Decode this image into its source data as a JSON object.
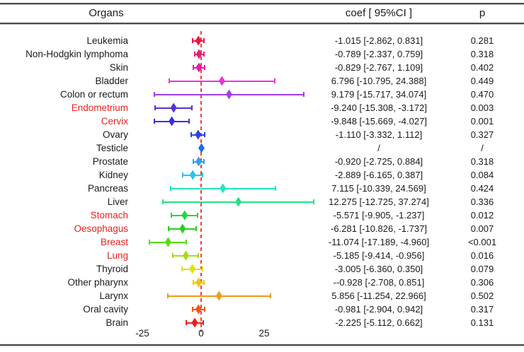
{
  "header": {
    "organs": "Organs",
    "coef": "coef [ 95%CI ]",
    "p": "p"
  },
  "axis": {
    "ticks": [
      "-25",
      "0",
      "25"
    ]
  },
  "colors": {
    "text": "#1a1a1a",
    "highlight_label": "#e8231c",
    "reference_line": "#f04134",
    "rule": "#4b4b4b"
  },
  "chart_data": {
    "type": "scatter",
    "variant": "forest plot (coefficient with 95% CI per category)",
    "title": "",
    "xlabel": "",
    "x_ticks": [
      -25,
      0,
      25
    ],
    "xlim": [
      -30,
      40
    ],
    "reference_line_x": 0,
    "grid": false,
    "rows": [
      {
        "organ": "Leukemia",
        "highlighted": false,
        "coef": -1.015,
        "ci": [
          -2.862,
          0.831
        ],
        "coef_text": "-1.015 [-2.862, 0.831]",
        "p": "0.281",
        "marker_color": "#e81948"
      },
      {
        "organ": "Non-Hodgkin lymphoma",
        "highlighted": false,
        "coef": -0.789,
        "ci": [
          -2.337,
          0.759
        ],
        "coef_text": "-0.789 [-2.337, 0.759]",
        "p": "0.318",
        "marker_color": "#ea1a74"
      },
      {
        "organ": "Skin",
        "highlighted": false,
        "coef": -0.829,
        "ci": [
          -2.767,
          1.109
        ],
        "coef_text": "-0.829 [-2.767, 1.109]",
        "p": "0.402",
        "marker_color": "#ee18a8"
      },
      {
        "organ": "Bladder",
        "highlighted": false,
        "coef": 6.796,
        "ci": [
          -10.795,
          24.388
        ],
        "coef_text": "6.796 [-10.795, 24.388]",
        "p": "0.449",
        "marker_color": "#ea34dd"
      },
      {
        "organ": "Colon or rectum",
        "highlighted": false,
        "coef": 9.179,
        "ci": [
          -15.717,
          34.074
        ],
        "coef_text": "9.179 [-15.717, 34.074]",
        "p": "0.470",
        "marker_color": "#a43ee8"
      },
      {
        "organ": "Endometrium",
        "highlighted": true,
        "coef": -9.24,
        "ci": [
          -15.308,
          -3.172
        ],
        "coef_text": "-9.240 [-15.308, -3.172]",
        "p": "0.003",
        "marker_color": "#5530dd"
      },
      {
        "organ": "Cervix",
        "highlighted": true,
        "coef": -9.848,
        "ci": [
          -15.669,
          -4.027
        ],
        "coef_text": "-9.848 [-15.669, -4.027]",
        "p": "0.001",
        "marker_color": "#3c2ee2"
      },
      {
        "organ": "Ovary",
        "highlighted": false,
        "coef": -1.11,
        "ci": [
          -3.332,
          1.112
        ],
        "coef_text": "-1.110 [-3.332, 1.112]",
        "p": "0.327",
        "marker_color": "#2544e6"
      },
      {
        "organ": "Testicle",
        "highlighted": false,
        "coef": null,
        "ci": null,
        "coef_text": "/",
        "p": "/",
        "marker_color": "#1d6ee9"
      },
      {
        "organ": "Prostate",
        "highlighted": false,
        "coef": -0.92,
        "ci": [
          -2.725,
          0.884
        ],
        "coef_text": "-0.920 [-2.725, 0.884]",
        "p": "0.318",
        "marker_color": "#2ea3ea"
      },
      {
        "organ": "Kidney",
        "highlighted": false,
        "coef": -2.889,
        "ci": [
          -6.165,
          0.387
        ],
        "coef_text": "-2.889 [-6.165, 0.387]",
        "p": "0.084",
        "marker_color": "#25c6ea"
      },
      {
        "organ": "Pancreas",
        "highlighted": false,
        "coef": 7.115,
        "ci": [
          -10.339,
          24.569
        ],
        "coef_text": "7.115 [-10.339, 24.569]",
        "p": "0.424",
        "marker_color": "#20e6c1"
      },
      {
        "organ": "Liver",
        "highlighted": false,
        "coef": 12.275,
        "ci": [
          -12.725,
          37.274
        ],
        "coef_text": "12.275 [-12.725, 37.274]",
        "p": "0.336",
        "marker_color": "#20e383"
      },
      {
        "organ": "Stomach",
        "highlighted": true,
        "coef": -5.571,
        "ci": [
          -9.905,
          -1.237
        ],
        "coef_text": "-5.571 [-9.905, -1.237]",
        "p": "0.012",
        "marker_color": "#1fd943"
      },
      {
        "organ": "Oesophagus",
        "highlighted": true,
        "coef": -6.281,
        "ci": [
          -10.826,
          -1.737
        ],
        "coef_text": "-6.281 [-10.826, -1.737]",
        "p": "0.007",
        "marker_color": "#2bcd25"
      },
      {
        "organ": "Breast",
        "highlighted": true,
        "coef": -11.074,
        "ci": [
          -17.189,
          -4.96
        ],
        "coef_text": "-11.074 [-17.189, -4.960]",
        "p": "<0.001",
        "marker_color": "#58da18"
      },
      {
        "organ": "Lung",
        "highlighted": true,
        "coef": -5.185,
        "ci": [
          -9.414,
          -0.956
        ],
        "coef_text": "-5.185 [-9.414, -0.956]",
        "p": "0.016",
        "marker_color": "#a2de14"
      },
      {
        "organ": "Thyroid",
        "highlighted": false,
        "coef": -3.005,
        "ci": [
          -6.36,
          0.35
        ],
        "coef_text": "-3.005 [-6.360, 0.350]",
        "p": "0.079",
        "marker_color": "#e4e012"
      },
      {
        "organ": "Other pharynx",
        "highlighted": false,
        "coef": -0.928,
        "ci": [
          -2.708,
          0.851
        ],
        "coef_text": "--0.928 [-2.708, 0.851]",
        "p": "0.306",
        "marker_color": "#eec414"
      },
      {
        "organ": "Larynx",
        "highlighted": false,
        "coef": 5.856,
        "ci": [
          -11.254,
          22.966
        ],
        "coef_text": "5.856 [-11.254, 22.966]",
        "p": "0.502",
        "marker_color": "#f09a1a"
      },
      {
        "organ": "Oral cavity",
        "highlighted": false,
        "coef": -0.981,
        "ci": [
          -2.904,
          0.942
        ],
        "coef_text": "-0.981 [-2.904, 0.942]",
        "p": "0.317",
        "marker_color": "#ef571e"
      },
      {
        "organ": "Brain",
        "highlighted": false,
        "coef": -2.225,
        "ci": [
          -5.112,
          0.662
        ],
        "coef_text": "-2.225 [-5.112, 0.662]",
        "p": "0.131",
        "marker_color": "#ec1f1b"
      }
    ]
  }
}
